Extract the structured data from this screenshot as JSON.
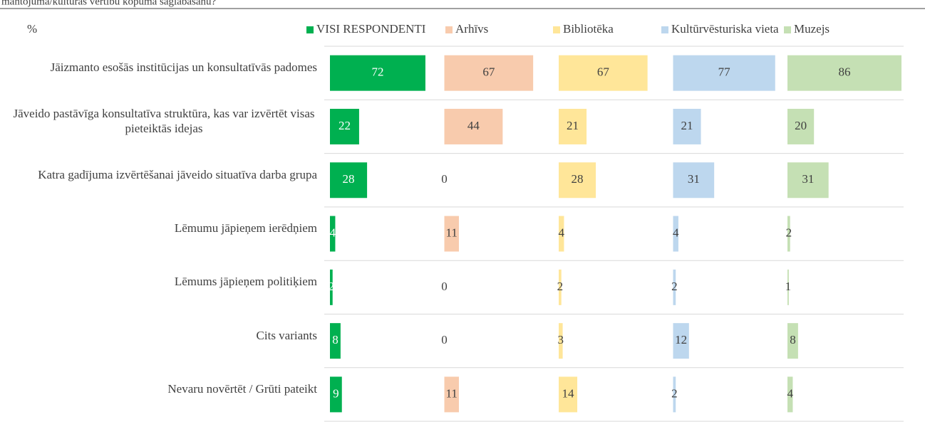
{
  "chart_data": {
    "type": "bar",
    "title": "mantojuma/kultūras vērtību kopuma saglabāšanu?",
    "unit_label": "%",
    "categories": [
      "Jāizmanto esošās institūcijas un konsultatīvās padomes",
      "Jāveido pastāvīga konsultatīva struktūra, kas var izvērtēt visas pieteiktās idejas",
      "Katra gadījuma izvērtēšanai jāveido situatīva darba grupa",
      "Lēmumu jāpieņem ierēdņiem",
      "Lēmums jāpieņem politiķiem",
      "Cits variants",
      "Nevaru novērtēt / Grūti pateikt"
    ],
    "xlim": [
      0,
      86
    ],
    "series": [
      {
        "name": "VISI RESPONDENTI",
        "color": "#00b050",
        "values": [
          72,
          22,
          28,
          4,
          2,
          8,
          9
        ]
      },
      {
        "name": "Arhīvs",
        "color": "#f8cbad",
        "values": [
          67,
          44,
          0,
          11,
          0,
          0,
          11
        ]
      },
      {
        "name": "Bibliotēka",
        "color": "#ffe699",
        "values": [
          67,
          21,
          28,
          4,
          2,
          3,
          14
        ]
      },
      {
        "name": "Kultūrvēsturiska vieta",
        "color": "#bdd7ee",
        "values": [
          77,
          21,
          31,
          4,
          2,
          12,
          2
        ]
      },
      {
        "name": "Muzejs",
        "color": "#c5e0b4",
        "values": [
          86,
          20,
          31,
          2,
          1,
          8,
          4
        ]
      }
    ]
  }
}
